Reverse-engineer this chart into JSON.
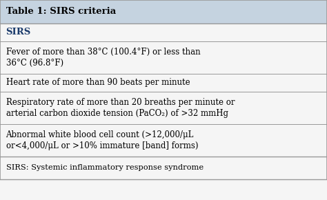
{
  "title": "Table 1: SIRS criteria",
  "header": "SIRS",
  "rows": [
    "Fever of more than 38°C (100.4°F) or less than\n36°C (96.8°F)",
    "Heart rate of more than 90 beats per minute",
    "Respiratory rate of more than 20 breaths per minute or\narterial carbon dioxide tension (PaCO₂) of >32 mmHg",
    "Abnormal white blood cell count (>12,000/μL\nor<4,000/μL or >10% immature [band] forms)"
  ],
  "footnote": "SIRS: Systemic inflammatory response syndrome",
  "title_bg": "#c5d3e0",
  "header_text_color": "#1a3a6b",
  "body_bg": "#f5f5f5",
  "border_color": "#999999",
  "title_fontsize": 9.5,
  "header_fontsize": 9.5,
  "row_fontsize": 8.5,
  "footnote_fontsize": 8.2,
  "fig_width": 4.74,
  "fig_height": 2.9
}
